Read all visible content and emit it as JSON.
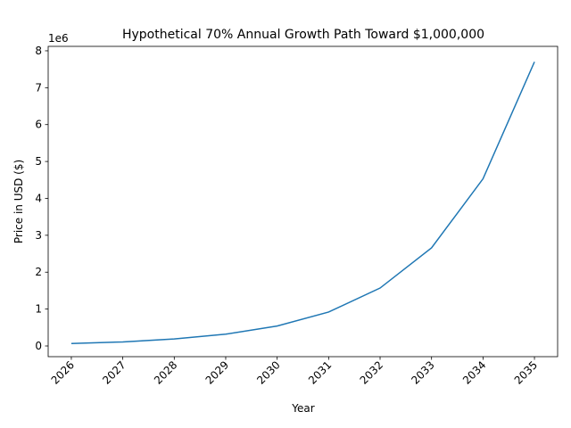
{
  "chart_data": {
    "type": "line",
    "title": "Hypothetical 70% Annual Growth Path Toward $1,000,000",
    "x_label": "Year",
    "y_label": "Price in USD ($)",
    "y_offset_label": "1e6",
    "x": [
      2026,
      2027,
      2028,
      2029,
      2030,
      2031,
      2032,
      2033,
      2034,
      2035
    ],
    "series": [
      {
        "name": "Price",
        "color": "#1f77b4",
        "values": [
          0.065,
          0.11,
          0.19,
          0.32,
          0.54,
          0.92,
          1.57,
          2.66,
          4.53,
          7.7
        ]
      }
    ],
    "xlim": [
      2025.55,
      2035.45
    ],
    "xticks": [
      2026,
      2027,
      2028,
      2029,
      2030,
      2031,
      2032,
      2033,
      2034,
      2035
    ],
    "ylim": [
      -0.29,
      8.12
    ],
    "yticks": [
      0,
      1,
      2,
      3,
      4,
      5,
      6,
      7,
      8
    ],
    "grid": false
  }
}
